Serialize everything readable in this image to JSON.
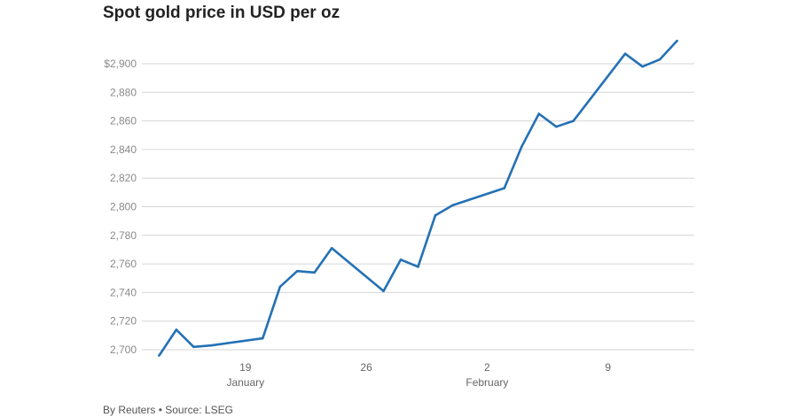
{
  "title": "Spot gold price in USD per oz",
  "footer": "By Reuters • Source: LSEG",
  "chart_data": {
    "type": "line",
    "title": "Spot gold price in USD per oz",
    "xlabel": "",
    "ylabel": "",
    "ylim": [
      2694,
      2922
    ],
    "y_ticks": [
      {
        "value": 2700,
        "label": "2,700"
      },
      {
        "value": 2720,
        "label": "2,720"
      },
      {
        "value": 2740,
        "label": "2,740"
      },
      {
        "value": 2760,
        "label": "2,760"
      },
      {
        "value": 2780,
        "label": "2,780"
      },
      {
        "value": 2800,
        "label": "2,800"
      },
      {
        "value": 2820,
        "label": "2,820"
      },
      {
        "value": 2840,
        "label": "2,840"
      },
      {
        "value": 2860,
        "label": "2,860"
      },
      {
        "value": 2880,
        "label": "2,880"
      },
      {
        "value": 2900,
        "label": "$2,900"
      }
    ],
    "x_ticks": [
      {
        "date": "2025-01-19",
        "label": "19",
        "sublabel": "January"
      },
      {
        "date": "2025-01-26",
        "label": "26",
        "sublabel": ""
      },
      {
        "date": "2025-02-02",
        "label": "2",
        "sublabel": "February"
      },
      {
        "date": "2025-02-09",
        "label": "9",
        "sublabel": ""
      }
    ],
    "x_range": [
      "2025-01-13",
      "2025-02-14"
    ],
    "grid": true,
    "line_color": "#2471b5",
    "series": [
      {
        "name": "",
        "points": [
          {
            "x": "2025-01-14",
            "y": 2696
          },
          {
            "x": "2025-01-15",
            "y": 2714
          },
          {
            "x": "2025-01-16",
            "y": 2702
          },
          {
            "x": "2025-01-17",
            "y": 2703
          },
          {
            "x": "2025-01-20",
            "y": 2708
          },
          {
            "x": "2025-01-21",
            "y": 2744
          },
          {
            "x": "2025-01-22",
            "y": 2755
          },
          {
            "x": "2025-01-23",
            "y": 2754
          },
          {
            "x": "2025-01-24",
            "y": 2771
          },
          {
            "x": "2025-01-27",
            "y": 2741
          },
          {
            "x": "2025-01-28",
            "y": 2763
          },
          {
            "x": "2025-01-29",
            "y": 2758
          },
          {
            "x": "2025-01-30",
            "y": 2794
          },
          {
            "x": "2025-01-31",
            "y": 2801
          },
          {
            "x": "2025-02-03",
            "y": 2813
          },
          {
            "x": "2025-02-04",
            "y": 2842
          },
          {
            "x": "2025-02-05",
            "y": 2865
          },
          {
            "x": "2025-02-06",
            "y": 2856
          },
          {
            "x": "2025-02-07",
            "y": 2860
          },
          {
            "x": "2025-02-10",
            "y": 2907
          },
          {
            "x": "2025-02-11",
            "y": 2898
          },
          {
            "x": "2025-02-12",
            "y": 2903
          },
          {
            "x": "2025-02-13",
            "y": 2916
          }
        ]
      }
    ]
  }
}
